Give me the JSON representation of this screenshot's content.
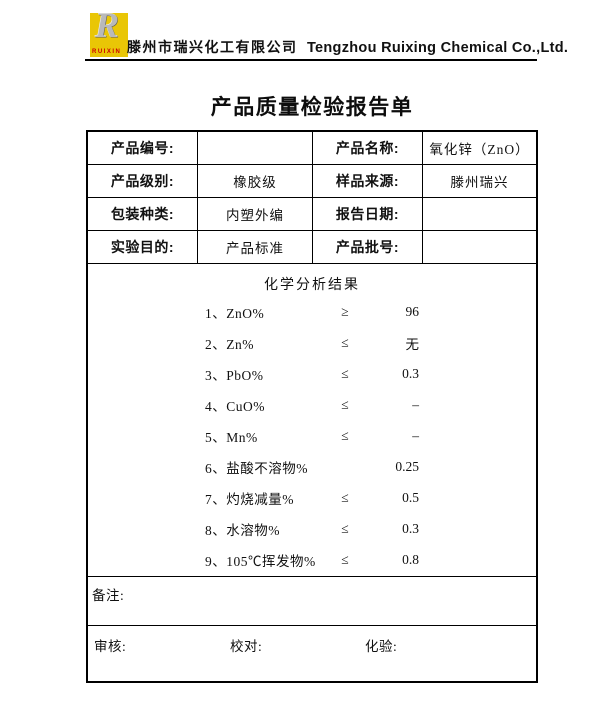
{
  "colors": {
    "logo-yellow": "#e9c606",
    "brand-red": "#cc0000",
    "border-black": "#000000"
  },
  "header": {
    "logo_letter": "R",
    "logo_brand": "RUIXIN",
    "company_cn": "滕州市瑞兴化工有限公司",
    "company_en": "Tengzhou Ruixing Chemical Co.,Ltd."
  },
  "title": "产品质量检验报告单",
  "info_rows": [
    {
      "c0": "产品编号:",
      "c1": "",
      "c2": "产品名称:",
      "c3": "氧化锌（ZnO）"
    },
    {
      "c0": "产品级别:",
      "c1": "橡胶级",
      "c2": "样品来源:",
      "c3": "滕州瑞兴"
    },
    {
      "c0": "包装种类:",
      "c1": "内塑外编",
      "c2": "报告日期:",
      "c3": ""
    },
    {
      "c0": "实验目的:",
      "c1": "产品标准",
      "c2": "产品批号:",
      "c3": ""
    }
  ],
  "analysis": {
    "section_title": "化学分析结果",
    "items": [
      {
        "name": "1、ZnO%",
        "symbol": "≥",
        "value": "96"
      },
      {
        "name": "2、Zn%",
        "symbol": "≤",
        "value": "无"
      },
      {
        "name": "3、PbO%",
        "symbol": "≤",
        "value": "0.3"
      },
      {
        "name": "4、CuO%",
        "symbol": "≤",
        "value": "–"
      },
      {
        "name": "5、Mn%",
        "symbol": "≤",
        "value": "–"
      },
      {
        "name": "6、盐酸不溶物%",
        "symbol": "",
        "value": "0.25"
      },
      {
        "name": "7、灼烧减量%",
        "symbol": "≤",
        "value": "0.5"
      },
      {
        "name": "8、水溶物%",
        "symbol": "≤",
        "value": "0.3"
      },
      {
        "name": "9、105℃挥发物%",
        "symbol": "≤",
        "value": "0.8"
      }
    ]
  },
  "remarks_label": "备注:",
  "footer": {
    "review": "审核:",
    "proofread": "校对:",
    "test": "化验:"
  }
}
